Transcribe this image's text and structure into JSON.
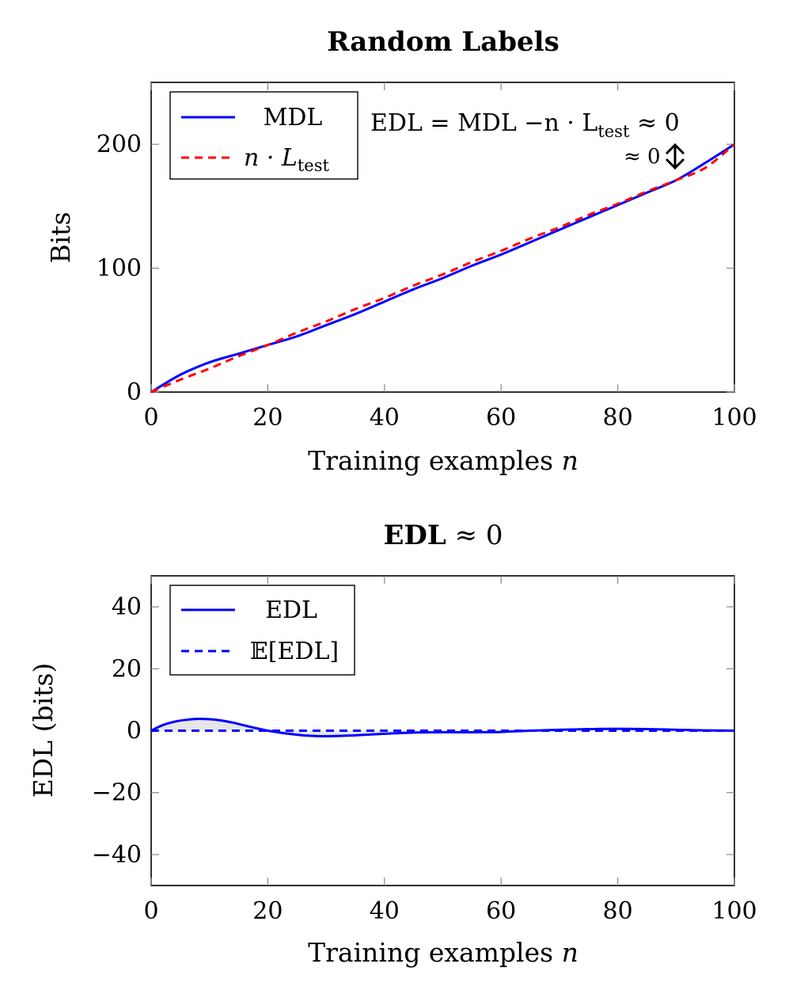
{
  "chart_data": [
    {
      "type": "line",
      "title": "Random Labels",
      "xlabel": "Training examples n",
      "ylabel": "Bits",
      "xlim": [
        0,
        100
      ],
      "ylim": [
        0,
        250
      ],
      "xticks": [
        "0",
        "20",
        "40",
        "60",
        "80",
        "100"
      ],
      "yticks": [
        "0",
        "100",
        "200"
      ],
      "grid": false,
      "legend_position": "top-left",
      "annotations": [
        "EDL = MDL −n · L",
        "test",
        " ≈ 0",
        "≈ 0"
      ],
      "series": [
        {
          "name": "MDL",
          "color": "#0000ff",
          "style": "solid",
          "x": [
            0,
            5,
            10,
            15,
            20,
            25,
            30,
            35,
            40,
            45,
            50,
            55,
            60,
            65,
            70,
            75,
            80,
            85,
            90,
            95,
            100
          ],
          "y": [
            0,
            14,
            24,
            31,
            38,
            45,
            54,
            63,
            73,
            83,
            92,
            102,
            111,
            121,
            131,
            141,
            151,
            161,
            171,
            185,
            200
          ]
        },
        {
          "name": "n · L",
          "name_sub": "test",
          "color": "#ff0000",
          "style": "dashed",
          "x": [
            0,
            5,
            10,
            15,
            20,
            25,
            30,
            35,
            40,
            45,
            50,
            55,
            60,
            65,
            70,
            75,
            80,
            85,
            90,
            95,
            100
          ],
          "y": [
            0,
            10,
            19,
            29,
            38,
            48,
            57,
            67,
            76,
            86,
            95,
            105,
            114,
            124,
            133,
            143,
            152,
            162,
            171,
            181,
            200
          ]
        }
      ]
    },
    {
      "type": "line",
      "title": "EDL ≈ 0",
      "title_bold_part": "EDL",
      "title_plain_part": " ≈ 0",
      "xlabel": "Training examples n",
      "ylabel": "EDL (bits)",
      "xlim": [
        0,
        100
      ],
      "ylim": [
        -50,
        50
      ],
      "xticks": [
        "0",
        "20",
        "40",
        "60",
        "80",
        "100"
      ],
      "yticks": [
        "−40",
        "−20",
        "0",
        "20",
        "40"
      ],
      "grid": false,
      "legend_position": "top-left",
      "series": [
        {
          "name": "EDL",
          "color": "#0000ff",
          "style": "solid",
          "fill": "#e6e6e6",
          "x": [
            0,
            2,
            4,
            6,
            8,
            10,
            12,
            14,
            16,
            18,
            20,
            22,
            24,
            26,
            28,
            30,
            35,
            40,
            45,
            50,
            55,
            60,
            65,
            70,
            75,
            80,
            85,
            90,
            95,
            100
          ],
          "y": [
            0,
            1.8,
            2.9,
            3.5,
            3.8,
            3.7,
            3.3,
            2.6,
            1.7,
            0.8,
            0,
            -0.6,
            -1.1,
            -1.5,
            -1.7,
            -1.8,
            -1.5,
            -1.0,
            -0.6,
            -0.5,
            -0.5,
            -0.4,
            0,
            0.3,
            0.5,
            0.6,
            0.5,
            0.3,
            0.1,
            0
          ]
        },
        {
          "name": "𝔼[EDL]",
          "color": "#0000ff",
          "style": "dashed",
          "x": [
            0,
            100
          ],
          "y": [
            0,
            0
          ]
        }
      ]
    }
  ]
}
